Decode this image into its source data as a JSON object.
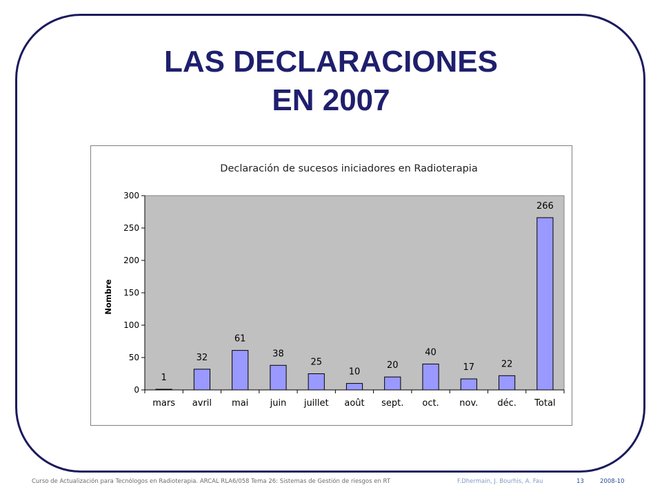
{
  "slide": {
    "title_line1": "LAS DECLARACIONES",
    "title_line2": "EN 2007"
  },
  "colors": {
    "frame": "#1a1a5e",
    "title": "#1f1f6e",
    "plot_background": "#c0c0c0",
    "bar_fill": "#9999ff",
    "bar_stroke": "#000000"
  },
  "chart_data": {
    "type": "bar",
    "title": "Declaración de sucesos iniciadores en Radioterapia",
    "xlabel": "",
    "ylabel": "Nombre",
    "ylim": [
      0,
      300
    ],
    "yticks": [
      0,
      50,
      100,
      150,
      200,
      250,
      300
    ],
    "categories": [
      "mars",
      "avril",
      "mai",
      "juin",
      "juillet",
      "août",
      "sept.",
      "oct.",
      "nov.",
      "déc.",
      "Total"
    ],
    "values": [
      1,
      32,
      61,
      38,
      25,
      10,
      20,
      40,
      17,
      22,
      266
    ],
    "grid": false,
    "legend": "none"
  },
  "footer": {
    "course": "Curso de Actualización para Tecnólogos en Radioterapia. ARCAL RLA6/058 Tema 26: Sistemas de Gestión de riesgos en RT",
    "authors": "F.Dhermain, J. Bourhis, A. Fau",
    "page_number": "13",
    "date": "2008-10"
  }
}
